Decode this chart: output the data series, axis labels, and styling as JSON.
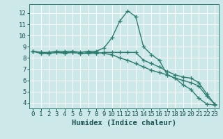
{
  "xlabel": "Humidex (Indice chaleur)",
  "ylabel": "",
  "background_color": "#cce8e8",
  "grid_color": "#ffffff",
  "line_color": "#2e7d6e",
  "xlim": [
    -0.5,
    23.5
  ],
  "ylim": [
    3.5,
    12.8
  ],
  "yticks": [
    4,
    5,
    6,
    7,
    8,
    9,
    10,
    11,
    12
  ],
  "xticks": [
    0,
    1,
    2,
    3,
    4,
    5,
    6,
    7,
    8,
    9,
    10,
    11,
    12,
    13,
    14,
    15,
    16,
    17,
    18,
    19,
    20,
    21,
    22,
    23
  ],
  "series": [
    [
      8.6,
      8.5,
      8.5,
      8.6,
      8.6,
      8.6,
      8.5,
      8.6,
      8.6,
      8.9,
      9.8,
      11.3,
      12.2,
      11.7,
      9.0,
      8.3,
      7.8,
      6.5,
      6.2,
      5.6,
      5.2,
      4.4,
      3.9,
      3.8
    ],
    [
      8.6,
      8.5,
      8.4,
      8.5,
      8.5,
      8.5,
      8.4,
      8.4,
      8.4,
      8.5,
      8.5,
      8.5,
      8.5,
      8.5,
      7.8,
      7.5,
      7.2,
      6.8,
      6.5,
      6.3,
      6.2,
      5.8,
      4.8,
      3.9
    ],
    [
      8.6,
      8.4,
      8.4,
      8.5,
      8.4,
      8.5,
      8.4,
      8.5,
      8.5,
      8.4,
      8.3,
      8.0,
      7.8,
      7.5,
      7.2,
      6.9,
      6.7,
      6.5,
      6.2,
      6.0,
      5.8,
      5.5,
      4.6,
      3.9
    ]
  ],
  "marker": "+",
  "markersize": 4,
  "linewidth": 1.0,
  "tick_fontsize": 6.5,
  "xlabel_fontsize": 7.5
}
